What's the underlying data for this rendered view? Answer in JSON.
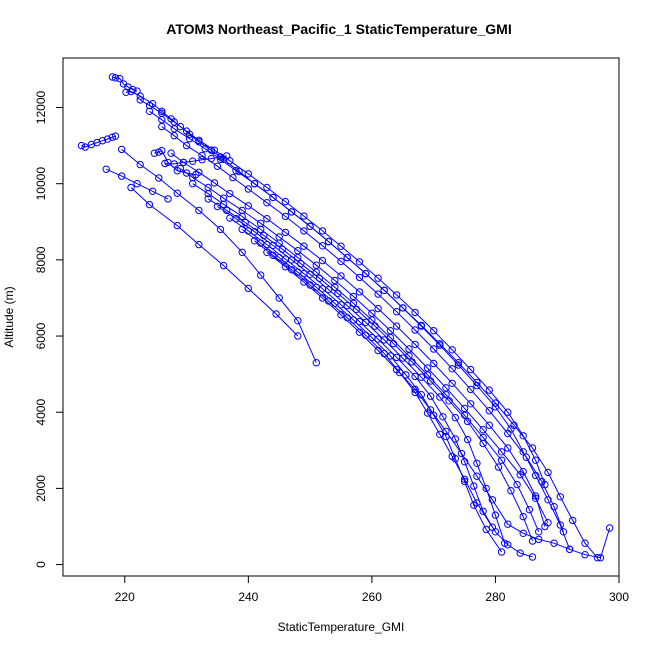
{
  "chart_data": {
    "type": "line",
    "title": "ATOM3 Northeast_Pacific_1 StaticTemperature_GMI",
    "xlabel": "StaticTemperature_GMI",
    "ylabel": "Altitude (m)",
    "xlim": [
      210,
      300
    ],
    "ylim": [
      -300,
      13300
    ],
    "xticks": [
      220,
      240,
      260,
      280,
      300
    ],
    "yticks": [
      0,
      2000,
      4000,
      6000,
      8000,
      10000,
      12000
    ],
    "grid": false,
    "markers": "open-circle",
    "color": "#0000ff",
    "series": [
      {
        "x": [
          218.0,
          218.5,
          219.2,
          219.8,
          220.5,
          221.3,
          222.0
        ],
        "y": [
          12800,
          12780,
          12760,
          12620,
          12540,
          12470,
          12430
        ]
      },
      {
        "x": [
          213.0,
          213.6,
          214.6,
          215.5,
          216.4,
          217.2,
          218.0,
          218.5
        ],
        "y": [
          11000,
          10960,
          11030,
          11080,
          11130,
          11170,
          11220,
          11250
        ]
      },
      {
        "x": [
          226.5,
          228.0,
          229.5,
          231.0,
          232.5,
          234.0,
          235.5,
          236.5
        ],
        "y": [
          10530,
          10520,
          10560,
          10590,
          10630,
          10660,
          10700,
          10730
        ]
      },
      {
        "x": [
          220.2,
          221.0,
          222.5,
          224.5,
          226.0,
          227.5,
          229.0,
          230.5,
          232.0,
          234.0,
          236.0,
          238.5,
          241.0,
          244.0,
          247.0,
          250.0,
          253.0,
          256.0,
          259.0,
          262.0,
          265.0,
          268.0,
          271.0,
          274.0,
          277.0,
          280.0,
          283.0,
          286.0,
          288.5,
          290.5,
          292.5,
          294.5,
          296.5
        ],
        "y": [
          12400,
          12420,
          12300,
          12100,
          11900,
          11700,
          11500,
          11300,
          11100,
          10880,
          10640,
          10320,
          10000,
          9640,
          9260,
          8880,
          8480,
          8060,
          7640,
          7200,
          6740,
          6280,
          5800,
          5300,
          4780,
          4240,
          3660,
          3060,
          2420,
          1780,
          1160,
          560,
          180
        ]
      },
      {
        "x": [
          222.5,
          224.0,
          226.0,
          228.0,
          230.0,
          232.0,
          234.5,
          237.0,
          240.0,
          243.0,
          246.0,
          249.0,
          252.0,
          255.0,
          258.0,
          261.0,
          264.0,
          267.0,
          270.0,
          273.0,
          276.0,
          279.0,
          282.0,
          284.5,
          286.5,
          288.0
        ],
        "y": [
          12200,
          12050,
          11850,
          11620,
          11380,
          11140,
          10880,
          10600,
          10260,
          9900,
          9530,
          9150,
          8760,
          8360,
          7950,
          7520,
          7080,
          6620,
          6140,
          5640,
          5120,
          4580,
          4000,
          3380,
          2740,
          2100
        ]
      },
      {
        "x": [
          224.0,
          226.0,
          228.0,
          230.5,
          233.0,
          235.5,
          238.0,
          241.0,
          244.0,
          247.0,
          250.0,
          253.0,
          256.0,
          259.0,
          262.0,
          265.0,
          268.0,
          271.0,
          274.0,
          277.0,
          280.0,
          282.5,
          284.5,
          286.5,
          288.5,
          290.5,
          292.0
        ],
        "y": [
          11900,
          11680,
          11440,
          11180,
          10920,
          10640,
          10340,
          10000,
          9640,
          9260,
          8880,
          8480,
          8060,
          7640,
          7200,
          6740,
          6260,
          5760,
          5240,
          4700,
          4140,
          3560,
          2960,
          2340,
          1700,
          1040,
          400
        ]
      },
      {
        "x": [
          226.0,
          228.0,
          230.0,
          232.5,
          235.0,
          237.5,
          240.0,
          243.0,
          246.0,
          249.0,
          252.0,
          255.0,
          258.0,
          261.0,
          264.0,
          267.0,
          270.0,
          273.0,
          276.0,
          279.0,
          282.0,
          285.0,
          287.5,
          289.5,
          291.0
        ],
        "y": [
          11500,
          11260,
          11000,
          10740,
          10460,
          10160,
          9860,
          9500,
          9140,
          8760,
          8370,
          7960,
          7540,
          7100,
          6640,
          6160,
          5660,
          5140,
          4600,
          4040,
          3440,
          2820,
          2180,
          1520,
          860
        ]
      },
      {
        "x": [
          227.5,
          229.5,
          232.0,
          234.5,
          237.0,
          240.0,
          243.0,
          246.0,
          249.0,
          252.0,
          255.0,
          258.0,
          261.0,
          264.0,
          267.0,
          270.0,
          273.0,
          276.0,
          279.0,
          282.0,
          284.5,
          286.5,
          288.0
        ],
        "y": [
          10800,
          10560,
          10300,
          10020,
          9740,
          9420,
          9080,
          8720,
          8360,
          7980,
          7580,
          7160,
          6720,
          6260,
          5780,
          5280,
          4760,
          4220,
          3660,
          3060,
          2440,
          1800,
          1000
        ]
      },
      {
        "x": [
          229.0,
          231.0,
          233.5,
          236.0,
          239.0,
          242.0,
          245.0,
          248.0,
          251.0,
          254.0,
          257.0,
          260.0,
          263.0,
          266.0,
          269.0,
          272.0,
          275.0,
          278.0,
          281.0,
          284.0,
          286.5,
          288.5
        ],
        "y": [
          10400,
          10160,
          9900,
          9620,
          9300,
          8960,
          8600,
          8240,
          7860,
          7460,
          7040,
          6600,
          6140,
          5660,
          5160,
          4640,
          4100,
          3540,
          2960,
          2360,
          1740,
          1100
        ]
      },
      {
        "x": [
          231.0,
          233.5,
          236.0,
          239.0,
          242.0,
          245.0,
          248.0,
          251.0,
          254.0,
          257.0,
          260.0,
          263.0,
          266.0,
          269.0,
          272.0,
          275.0,
          278.0,
          281.0,
          283.5,
          285.5,
          287.0
        ],
        "y": [
          10000,
          9740,
          9460,
          9140,
          8800,
          8440,
          8060,
          7680,
          7280,
          6860,
          6420,
          5960,
          5480,
          4980,
          4460,
          3920,
          3340,
          2740,
          2100,
          1440,
          860
        ]
      },
      {
        "x": [
          233.5,
          236.5,
          239.5,
          242.5,
          245.5,
          248.5,
          251.5,
          254.5,
          257.5,
          260.5,
          263.5,
          266.5,
          269.5,
          272.5,
          275.5,
          278.0,
          280.5,
          282.5,
          284.5,
          286.0
        ],
        "y": [
          9600,
          9300,
          8980,
          8640,
          8280,
          7900,
          7520,
          7120,
          6700,
          6260,
          5800,
          5320,
          4820,
          4300,
          3760,
          3180,
          2560,
          1940,
          1260,
          620
        ]
      },
      {
        "x": [
          235.0,
          238.0,
          241.0,
          244.0,
          247.0,
          250.0,
          253.0,
          256.0,
          259.0,
          262.0,
          265.0,
          268.0,
          271.0,
          273.5,
          275.5,
          277.0,
          278.5,
          280.0,
          281.5
        ],
        "y": [
          9400,
          9080,
          8740,
          8380,
          8000,
          7620,
          7220,
          6800,
          6360,
          5900,
          5420,
          4920,
          4400,
          3860,
          3280,
          2660,
          2000,
          1300,
          560
        ]
      },
      {
        "x": [
          237.0,
          240.0,
          243.0,
          246.0,
          249.0,
          252.0,
          255.0,
          258.0,
          261.0,
          264.0,
          267.0,
          269.5,
          271.5,
          273.5,
          275.0,
          276.5,
          278.0,
          280.0,
          282.0,
          284.0,
          286.0
        ],
        "y": [
          9100,
          8760,
          8400,
          8020,
          7640,
          7240,
          6820,
          6380,
          5920,
          5440,
          4940,
          4420,
          3880,
          3300,
          2700,
          2060,
          1400,
          860,
          520,
          300,
          200
        ]
      },
      {
        "x": [
          239.0,
          242.0,
          245.0,
          248.0,
          251.0,
          254.0,
          257.0,
          260.0,
          263.0,
          265.5,
          268.0,
          270.0,
          272.0,
          273.5,
          275.0,
          276.5,
          278.5,
          281.0
        ],
        "y": [
          8800,
          8440,
          8060,
          7680,
          7280,
          6860,
          6420,
          5960,
          5480,
          4980,
          4460,
          3920,
          3360,
          2780,
          2180,
          1560,
          920,
          330
        ]
      },
      {
        "x": [
          241.0,
          244.0,
          247.0,
          250.0,
          253.0,
          256.0,
          259.0,
          262.0,
          264.5,
          267.0,
          269.0,
          271.0,
          273.0,
          275.0,
          277.0,
          279.5
        ],
        "y": [
          8500,
          8120,
          7740,
          7340,
          6920,
          6480,
          6020,
          5540,
          5040,
          4520,
          3980,
          3420,
          2840,
          2240,
          1620,
          980
        ]
      },
      {
        "x": [
          243.0,
          246.0,
          249.0,
          252.0,
          255.0,
          258.0,
          261.0,
          264.0,
          267.0,
          269.5,
          272.0,
          274.5,
          277.0,
          279.5,
          282.0,
          284.5,
          287.0,
          289.5,
          292.0,
          294.5,
          297.0,
          298.5
        ],
        "y": [
          8200,
          7820,
          7420,
          7000,
          6560,
          6100,
          5620,
          5120,
          4600,
          4060,
          3500,
          2920,
          2320,
          1700,
          1060,
          820,
          660,
          560,
          400,
          260,
          180,
          960
        ]
      },
      {
        "x": [
          217.0,
          219.5,
          222.0,
          224.5,
          227.0
        ],
        "y": [
          10380,
          10200,
          10000,
          9800,
          9600
        ]
      },
      {
        "x": [
          219.5,
          222.5,
          225.5,
          228.5,
          232.0,
          235.5,
          239.0,
          242.0,
          245.0,
          248.0,
          251.0
        ],
        "y": [
          10900,
          10500,
          10150,
          9750,
          9300,
          8800,
          8200,
          7600,
          7000,
          6400,
          5300
        ]
      },
      {
        "x": [
          221.0,
          224.0,
          228.5,
          232.0,
          236.0,
          240.0,
          244.5,
          248.0
        ],
        "y": [
          9900,
          9450,
          8900,
          8400,
          7850,
          7250,
          6580,
          6000
        ]
      },
      {
        "x": [
          224.8,
          225.5,
          226.0,
          227.0,
          228.5,
          230.0,
          231.5
        ],
        "y": [
          10800,
          10830,
          10870,
          10560,
          10340,
          10280,
          10240
        ]
      }
    ]
  }
}
